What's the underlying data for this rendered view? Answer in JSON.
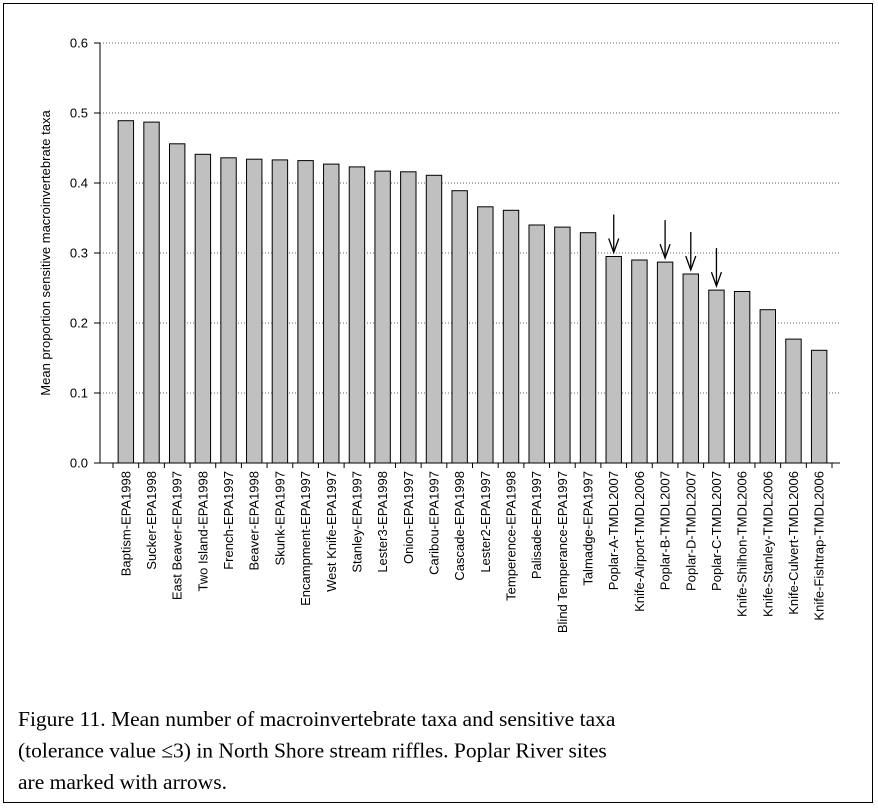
{
  "chart_data": {
    "type": "bar",
    "y_label": "Mean proportion sensitive macroinvertebrate taxa",
    "categories": [
      "Baptism-EPA1998",
      "Sucker-EPA1998",
      "East Beaver-EPA1997",
      "Two Island-EPA1998",
      "French-EPA1997",
      "Beaver-EPA1998",
      "Skunk-EPA1997",
      "Encampment-EPA1997",
      "West Knife-EPA1997",
      "Stanley-EPA1997",
      "Lester3-EPA1998",
      "Onion-EPA1997",
      "Caribou-EPA1997",
      "Cascade-EPA1998",
      "Lester2-EPA1997",
      "Temperence-EPA1998",
      "Palisade-EPA1997",
      "Blind Temperance-EPA1997",
      "Talmadge-EPA1997",
      "Poplar-A-TMDL2007",
      "Knife-Airport-TMDL2006",
      "Poplar-B-TMDL2007",
      "Poplar-D-TMDL2007",
      "Poplar-C-TMDL2007",
      "Knife-Shilhon-TMDL2006",
      "Knife-Stanley-TMDL2006",
      "Knife-Culvert-TMDL2006",
      "Knife-Fishtrap-TMDL2006"
    ],
    "values": [
      0.489,
      0.487,
      0.456,
      0.441,
      0.436,
      0.434,
      0.433,
      0.432,
      0.427,
      0.423,
      0.417,
      0.416,
      0.411,
      0.389,
      0.366,
      0.361,
      0.34,
      0.337,
      0.329,
      0.295,
      0.29,
      0.287,
      0.27,
      0.247,
      0.245,
      0.219,
      0.177,
      0.161
    ],
    "color": "#c0c0c0",
    "ylim": [
      0,
      0.6
    ],
    "yticks": [
      {
        "value": 0,
        "label": "0.0"
      },
      0.1,
      0.2,
      0.3,
      0.4,
      0.5,
      0.6
    ],
    "grid": true,
    "arrow_indices": [
      19,
      21,
      22,
      23
    ],
    "caption_lines": [
      "Figure 11. Mean number of macroinvertebrate taxa and sensitive taxa",
      "(tolerance value ≤3) in North Shore stream riffles. Poplar River sites",
      "are marked with arrows."
    ]
  }
}
